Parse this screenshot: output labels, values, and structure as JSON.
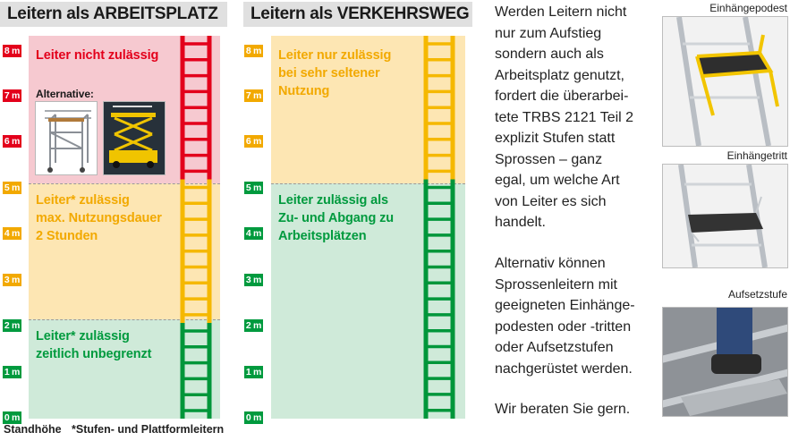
{
  "left_panel": {
    "title": "Leitern als ARBEITSPLATZ",
    "zones": [
      {
        "from_m": 5,
        "to_m": 8,
        "color": "#f6c9d0",
        "text_color": "#e3001b",
        "lines": [
          "Leiter nicht zulässig"
        ]
      },
      {
        "from_m": 2,
        "to_m": 5,
        "color": "#fde6b3",
        "text_color": "#f2a900",
        "lines": [
          "Leiter* zulässig",
          "max. Nutzungsdauer",
          "2 Stunden"
        ]
      },
      {
        "from_m": 0,
        "to_m": 2,
        "color": "#cfead9",
        "text_color": "#009a3e",
        "lines": [
          "Leiter* zulässig",
          "zeitlich unbegrenzt"
        ]
      }
    ],
    "alternative_label": "Alternative:",
    "ladder_colors": {
      "red": "#e3001b",
      "yellow": "#f5b800",
      "green": "#00963a"
    }
  },
  "right_panel": {
    "title": "Leitern als VERKEHRSWEG",
    "zones": [
      {
        "from_m": 5,
        "to_m": 8,
        "color": "#fde6b3",
        "text_color": "#f2a900",
        "lines": [
          "Leiter nur zulässig",
          "bei sehr seltener",
          "Nutzung"
        ]
      },
      {
        "from_m": 0,
        "to_m": 5,
        "color": "#cfead9",
        "text_color": "#009a3e",
        "lines": [
          "Leiter zulässig als",
          "Zu- und Abgang zu",
          "Arbeitsplätzen"
        ]
      }
    ]
  },
  "scale_labels": [
    "8 m",
    "7 m",
    "6 m",
    "5 m",
    "4 m",
    "3 m",
    "2 m",
    "1 m",
    "0 m"
  ],
  "footer": {
    "standhoehe": "Standhöhe",
    "note": "*Stufen- und Plattformleitern"
  },
  "body_text": {
    "paragraph1": [
      "Werden Leitern nicht",
      "nur zum Aufstieg",
      "sondern auch als",
      "Arbeitsplatz genutzt,",
      "fordert die überarbei-",
      "tete TRBS 2121 Teil 2",
      "explizit Stufen statt",
      "Sprossen – ganz",
      "egal, um welche Art",
      "von Leiter es sich",
      "handelt."
    ],
    "paragraph2": [
      "Alternativ können",
      "Sprossenleitern mit",
      "geeigneten Einhänge-",
      "podesten oder -tritten",
      "oder Aufsetzstufen",
      "nachgerüstet werden."
    ],
    "paragraph3": [
      "Wir beraten Sie gern."
    ]
  },
  "photos": [
    {
      "caption": "Einhängepodest"
    },
    {
      "caption": "Einhängetritt"
    },
    {
      "caption": "Aufsetzstufe"
    }
  ]
}
